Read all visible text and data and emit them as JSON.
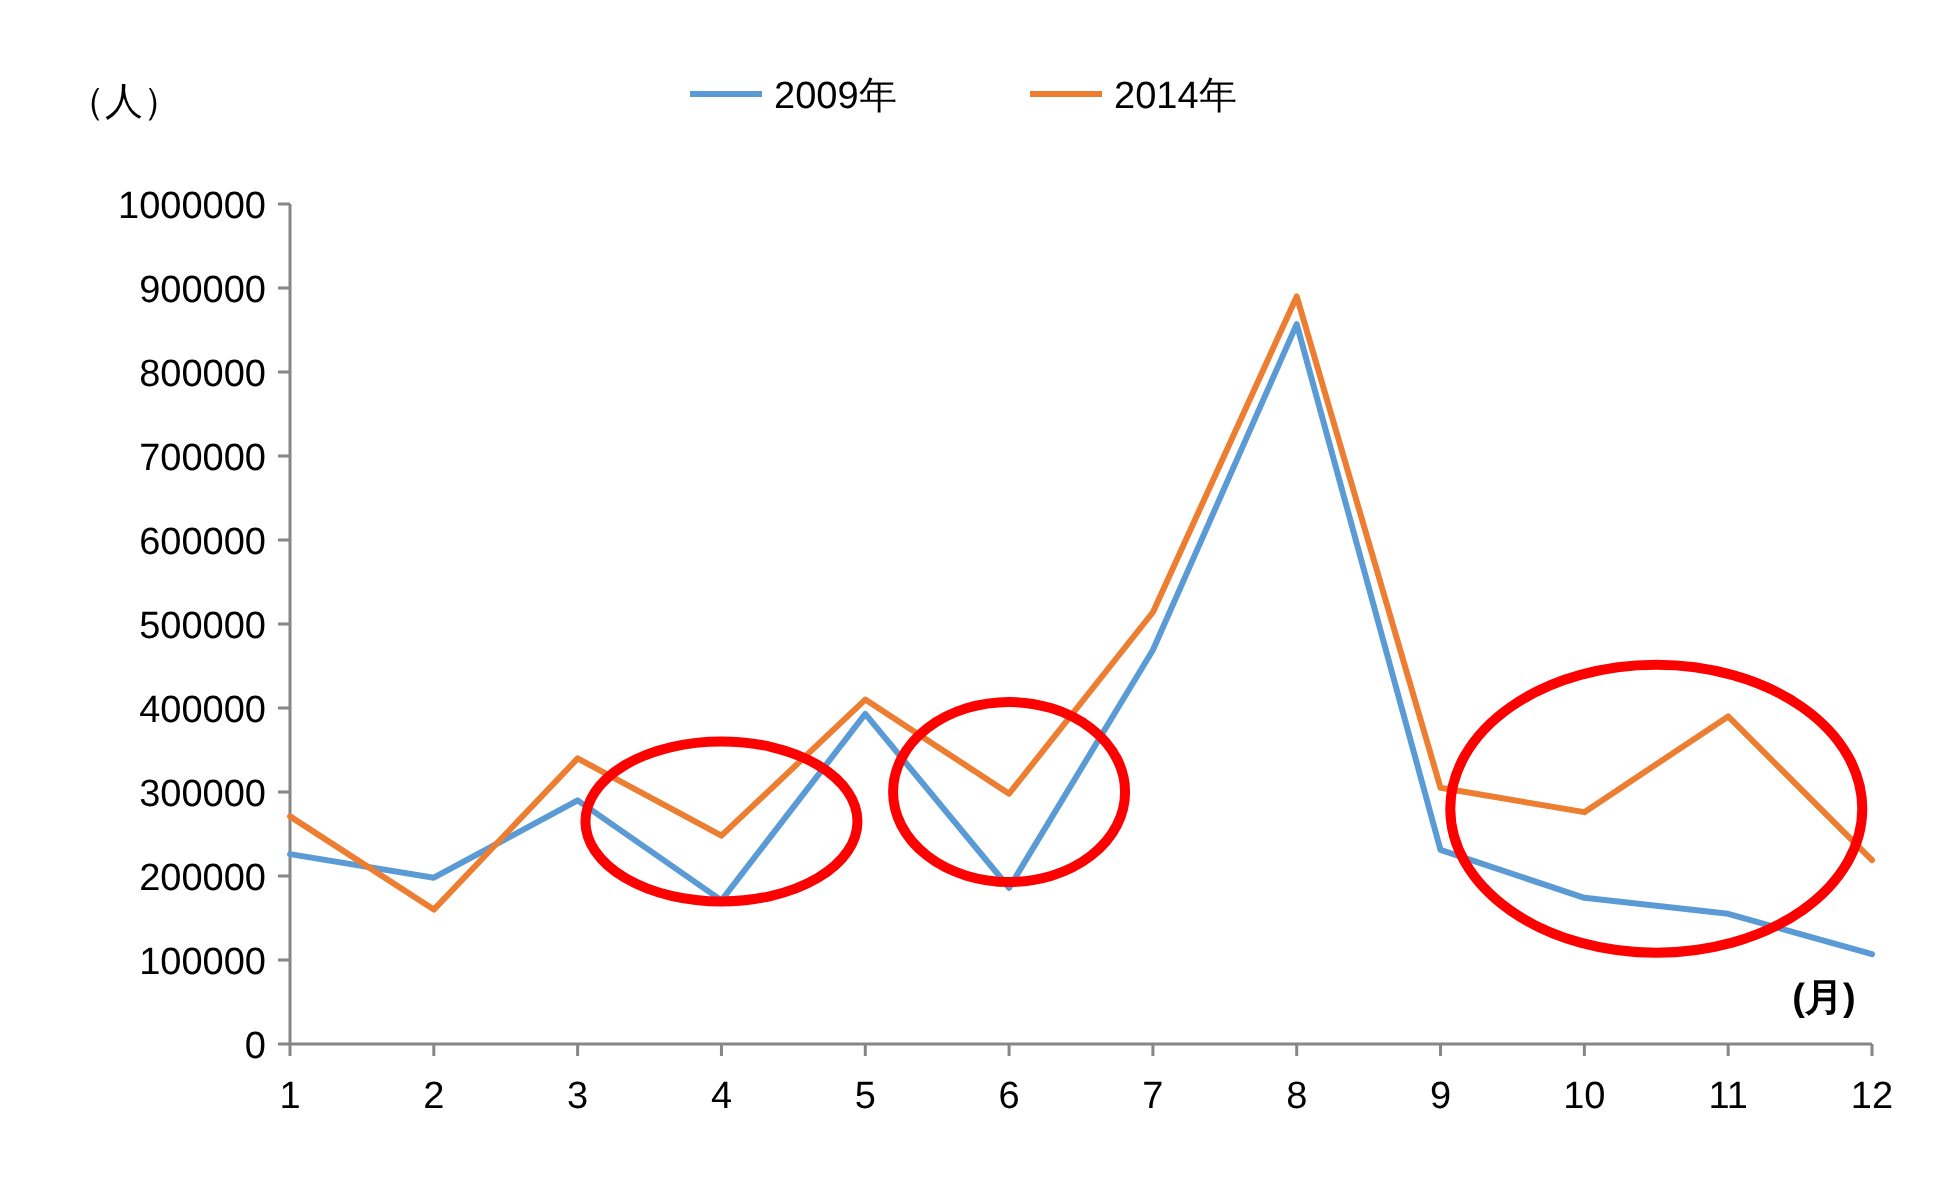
{
  "chart_data": {
    "type": "line",
    "xlabel": "(月)",
    "ylabel": "（人）",
    "legend": "top",
    "x": [
      1,
      2,
      3,
      4,
      5,
      6,
      7,
      8,
      9,
      10,
      11,
      12
    ],
    "xlim": [
      1,
      12
    ],
    "xticks": [
      1,
      2,
      3,
      4,
      5,
      6,
      7,
      8,
      9,
      10,
      11,
      12
    ],
    "ylim": [
      0,
      1000000
    ],
    "yticks": [
      0,
      100000,
      200000,
      300000,
      400000,
      500000,
      600000,
      700000,
      800000,
      900000,
      1000000
    ],
    "grid": false,
    "marker": "none",
    "line_style": "solid",
    "series": [
      {
        "name": "2009年",
        "color": "#5b9bd5",
        "values": [
          226000,
          198000,
          290000,
          171000,
          393000,
          186000,
          469000,
          857000,
          231000,
          174000,
          155000,
          107000
        ]
      },
      {
        "name": "2014年",
        "color": "#ed7d31",
        "values": [
          271000,
          160000,
          340000,
          248000,
          410000,
          298000,
          514000,
          890000,
          305000,
          276000,
          390000,
          219000
        ]
      }
    ]
  }
}
